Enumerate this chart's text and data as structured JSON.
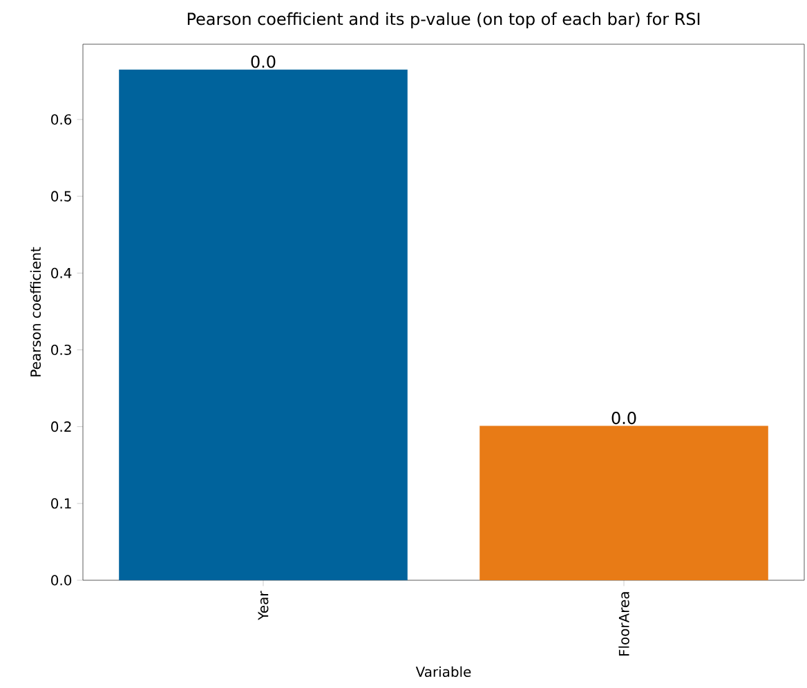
{
  "chart_data": {
    "type": "bar",
    "title": "Pearson coefficient and its p-value (on top of each bar) for RSI",
    "xlabel": "Variable",
    "ylabel": "Pearson coefficient",
    "categories": [
      "Year",
      "FloorArea"
    ],
    "values": [
      0.665,
      0.201
    ],
    "colors": [
      "#00639c",
      "#e87b16"
    ],
    "annotations": [
      {
        "text": "0.0",
        "x": "Year",
        "y": 0.665
      },
      {
        "text": "0.0",
        "x": "FloorArea",
        "y": 0.201
      }
    ],
    "ylim": [
      0,
      0.698
    ],
    "yticks": [
      {
        "value": 0,
        "label": "0.0"
      },
      0.1,
      0.2,
      0.3,
      0.4,
      0.5,
      0.6
    ]
  }
}
